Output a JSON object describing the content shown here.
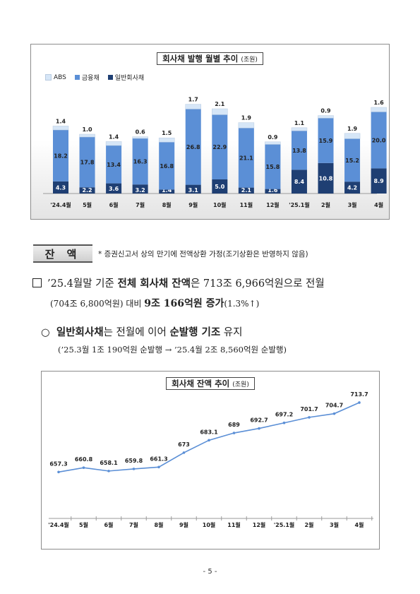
{
  "chart_data": [
    {
      "type": "bar",
      "title": "회사채 발행 월별 추이",
      "unit": "(조원)",
      "categories": [
        "'24.4월",
        "5월",
        "6월",
        "7월",
        "8월",
        "9월",
        "10월",
        "11월",
        "12월",
        "'25.1월",
        "2월",
        "3월",
        "4월"
      ],
      "series": [
        {
          "name": "일반회사채",
          "values": [
            4.3,
            2.2,
            3.6,
            3.2,
            1.4,
            3.1,
            5.0,
            2.1,
            1.6,
            8.4,
            10.8,
            4.2,
            8.9
          ]
        },
        {
          "name": "금융채",
          "values": [
            18.2,
            17.8,
            13.4,
            16.3,
            16.8,
            26.8,
            22.9,
            21.1,
            15.8,
            13.8,
            15.9,
            15.2,
            20.0
          ]
        },
        {
          "name": "ABS",
          "values": [
            1.4,
            1.0,
            1.4,
            0.6,
            1.5,
            1.7,
            2.1,
            1.9,
            0.9,
            1.1,
            0.9,
            1.9,
            1.6
          ]
        }
      ],
      "colors": {
        "일반회사채": "#1f3f73",
        "금융채": "#5b8fd6",
        "ABS": "#d6e6f7"
      }
    },
    {
      "type": "line",
      "title": "회사채 잔액 추이",
      "unit": "(조원)",
      "categories": [
        "'24.4월",
        "5월",
        "6월",
        "7월",
        "8월",
        "9월",
        "10월",
        "11월",
        "12월",
        "'25.1월",
        "2월",
        "3월",
        "4월"
      ],
      "values": [
        657.3,
        660.8,
        658.1,
        659.8,
        661.3,
        673,
        683.1,
        689.0,
        692.7,
        697.2,
        701.7,
        704.7,
        713.7
      ],
      "color": "#5b8fd6"
    }
  ],
  "section": {
    "label": "잔 액",
    "footnote": "* 증권신고서 상의 만기에 전액상환 가정(조기상환은 반영하지 않음)"
  },
  "para1": {
    "a": "’25.4월말 기준 ",
    "b": "전체 회사채 잔액",
    "c": "은 713조 6,966억원",
    "d": "으로 전월",
    "e": "(704조 6,800억원) 대비 ",
    "f": "9조 166억원 증가",
    "g": "(1.3%↑)"
  },
  "para2": {
    "bullet": "○",
    "a": "일반회사채",
    "b": "는 전월에 이어 ",
    "c": "순발행 기조",
    "d": " 유지",
    "e": "(’25.3월 1조 190억원 순발행 → ’25.4월 2조 8,560억원 순발행)"
  },
  "page_number": "- 5 -"
}
